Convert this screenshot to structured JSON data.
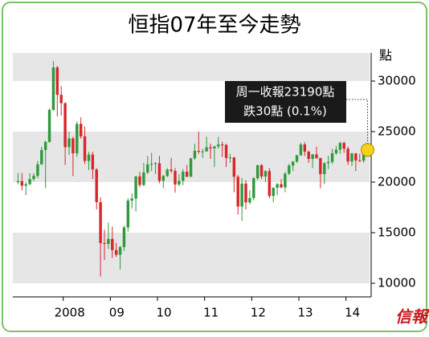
{
  "chart_data": {
    "type": "candlestick",
    "title": "恒指07年至今走勢",
    "y_unit": "點",
    "annotation": [
      "周一收報23190點",
      "跌30點 (0.1%)"
    ],
    "source": "信報",
    "up_color": "#2e9a3c",
    "down_color": "#d8262b",
    "categories": [
      null,
      null,
      null,
      null,
      null,
      null,
      null,
      null,
      null,
      null,
      null,
      null,
      "2008",
      null,
      null,
      null,
      null,
      null,
      null,
      null,
      null,
      null,
      null,
      null,
      "09",
      null,
      null,
      null,
      null,
      null,
      null,
      null,
      null,
      null,
      null,
      null,
      "10",
      null,
      null,
      null,
      null,
      null,
      null,
      null,
      null,
      null,
      null,
      null,
      "11",
      null,
      null,
      null,
      null,
      null,
      null,
      null,
      null,
      null,
      null,
      null,
      "12",
      null,
      null,
      null,
      null,
      null,
      null,
      null,
      null,
      null,
      null,
      null,
      "13",
      null,
      null,
      null,
      null,
      null,
      null,
      null,
      null,
      null,
      null,
      null,
      "14",
      null,
      null,
      null,
      null,
      null
    ],
    "open": [
      20000,
      20100,
      19650,
      19800,
      20300,
      20630,
      21770,
      23180,
      23980,
      27140,
      31350,
      28640,
      27810,
      23460,
      24330,
      22850,
      25760,
      24530,
      22100,
      22730,
      21260,
      18020,
      13970,
      13890,
      14390,
      13280,
      12810,
      13580,
      15520,
      18170,
      18380,
      20570,
      19720,
      20960,
      21750,
      21820,
      21870,
      20120,
      20610,
      21240,
      21110,
      19770,
      20130,
      21030,
      20540,
      22360,
      23100,
      23010,
      23040,
      23450,
      23340,
      23530,
      23720,
      23680,
      22400,
      22440,
      20530,
      17590,
      19860,
      17990,
      18430,
      20390,
      21680,
      20560,
      21090,
      18630,
      19440,
      19800,
      19480,
      20840,
      21640,
      22030,
      22660,
      23730,
      23020,
      22300,
      22740,
      22390,
      20800,
      21880,
      22000,
      22860,
      23210,
      23880,
      23310,
      22040,
      22840,
      22150,
      22130,
      23080
    ],
    "high": [
      20900,
      20900,
      20000,
      20900,
      20900,
      22100,
      23500,
      24100,
      27300,
      31958,
      31500,
      29500,
      27900,
      25000,
      24500,
      26000,
      26400,
      25500,
      23000,
      23000,
      21400,
      18500,
      15300,
      16000,
      15600,
      14000,
      13700,
      15700,
      18400,
      18900,
      20600,
      21000,
      21900,
      22600,
      22900,
      22000,
      22600,
      20700,
      21400,
      22400,
      21400,
      20800,
      21300,
      21700,
      22400,
      23800,
      24990,
      23300,
      24500,
      23800,
      23600,
      24470,
      24000,
      23800,
      22800,
      22500,
      20700,
      20400,
      20200,
      19200,
      20500,
      21700,
      21800,
      21200,
      21400,
      19500,
      19900,
      20300,
      21000,
      21800,
      22100,
      22700,
      23900,
      23950,
      23100,
      22800,
      23500,
      22400,
      21970,
      22600,
      23300,
      23600,
      24000,
      24000,
      23500,
      22900,
      22900,
      22800,
      23100,
      23300
    ],
    "low": [
      19800,
      19200,
      18700,
      19700,
      20100,
      20400,
      21700,
      19400,
      23900,
      27100,
      26500,
      26600,
      21700,
      22700,
      20600,
      22500,
      24300,
      21800,
      21200,
      20300,
      17300,
      10676,
      12300,
      13400,
      12500,
      12600,
      11340,
      13200,
      15100,
      17400,
      17100,
      19500,
      19600,
      20800,
      21100,
      20800,
      19900,
      19400,
      20500,
      20900,
      18970,
      19600,
      19700,
      20500,
      20500,
      22200,
      22800,
      22400,
      23000,
      22300,
      21500,
      23300,
      22500,
      21500,
      21900,
      19000,
      16800,
      16170,
      17300,
      17800,
      18200,
      20200,
      20300,
      20000,
      18400,
      18000,
      18700,
      19400,
      19000,
      20700,
      21100,
      21900,
      22600,
      22600,
      21900,
      21400,
      22300,
      19400,
      19800,
      21300,
      21800,
      22700,
      22800,
      22900,
      21700,
      21600,
      21100,
      22000,
      21900,
      22700
    ],
    "close": [
      20100,
      19650,
      19800,
      20300,
      20630,
      21770,
      23180,
      23980,
      27140,
      31350,
      28640,
      27810,
      23460,
      24330,
      22850,
      25760,
      24530,
      22100,
      22730,
      21260,
      18020,
      13970,
      13890,
      14390,
      13280,
      12810,
      13580,
      15520,
      18170,
      18380,
      20570,
      19720,
      20960,
      21750,
      21820,
      21870,
      20120,
      20610,
      21240,
      21110,
      19770,
      20130,
      21030,
      20540,
      22360,
      23100,
      23010,
      23040,
      23450,
      23340,
      23530,
      23720,
      23680,
      22400,
      22440,
      20530,
      17590,
      19860,
      17990,
      18430,
      20390,
      21680,
      20560,
      21090,
      18630,
      19440,
      19800,
      19480,
      20840,
      21640,
      22030,
      22660,
      23730,
      23020,
      22300,
      22740,
      22390,
      20800,
      21880,
      22000,
      22860,
      23210,
      23880,
      23310,
      22040,
      22840,
      22150,
      22130,
      23080,
      23190
    ],
    "ylim": [
      8650,
      32780
    ],
    "yticks": [
      10000,
      15000,
      20000,
      25000,
      30000
    ],
    "band_color": "#e6e6e6"
  }
}
